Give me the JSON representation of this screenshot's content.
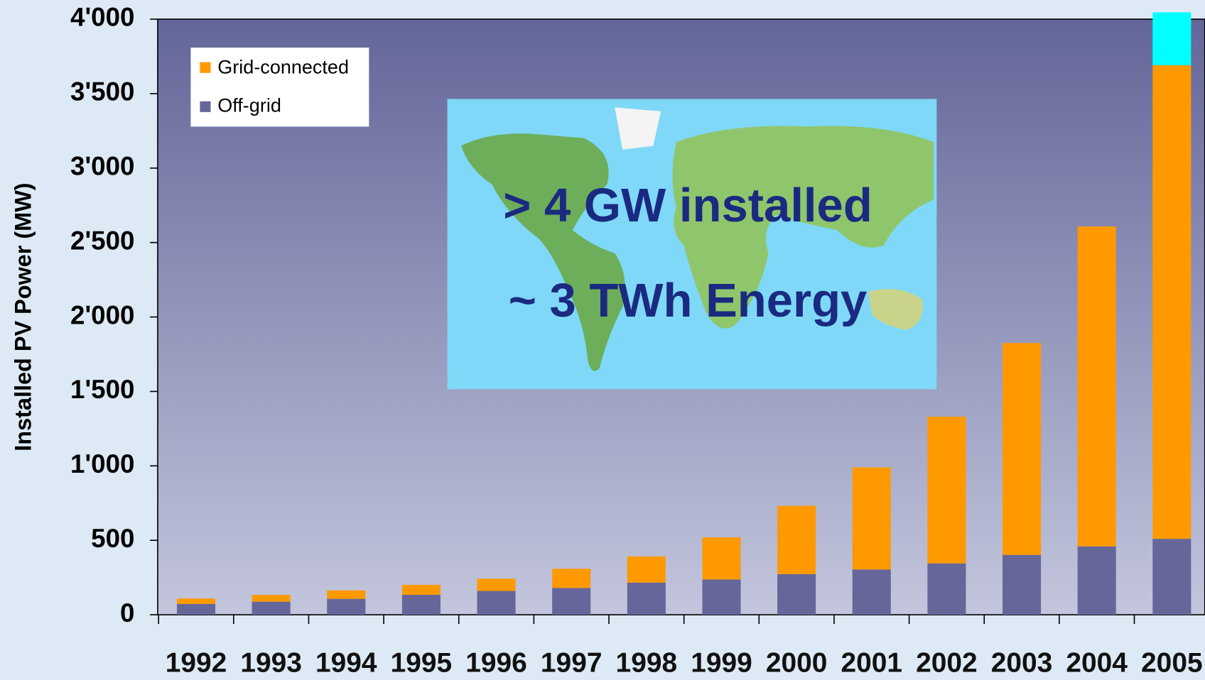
{
  "chart_data": {
    "type": "stacked-bar",
    "y_label": "Installed PV Power (MW)",
    "categories": [
      "1992",
      "1993",
      "1994",
      "1995",
      "1996",
      "1997",
      "1998",
      "1999",
      "2000",
      "2001",
      "2002",
      "2003",
      "2004",
      "2005"
    ],
    "series": [
      {
        "name": "Off-grid",
        "color": "#656699",
        "values": [
          73,
          88,
          107,
          134,
          160,
          180,
          216,
          237,
          273,
          304,
          345,
          402,
          459,
          510
        ]
      },
      {
        "name": "Grid-connected",
        "color": "#ff9900",
        "values": [
          36,
          46,
          57,
          67,
          82,
          129,
          176,
          283,
          459,
          686,
          985,
          1423,
          2149,
          3181
        ]
      },
      {
        "color": "#00ffff",
        "values": [
          null,
          null,
          null,
          null,
          null,
          null,
          null,
          null,
          null,
          null,
          null,
          null,
          null,
          355
        ]
      }
    ],
    "ylim": [
      0,
      4000
    ],
    "yticks": [
      0,
      500,
      {
        "value": 1000,
        "label": "1'000"
      },
      {
        "value": 1500,
        "label": "1'500"
      },
      {
        "value": 2000,
        "label": "2'000"
      },
      {
        "value": 2500,
        "label": "2'500"
      },
      {
        "value": 3000,
        "label": "3'000"
      },
      {
        "value": 3500,
        "label": "3'500"
      },
      {
        "value": 4000,
        "label": "4'000"
      }
    ],
    "annotations": [
      "> 4 GW installed",
      "~ 3 TWh Energy"
    ]
  }
}
